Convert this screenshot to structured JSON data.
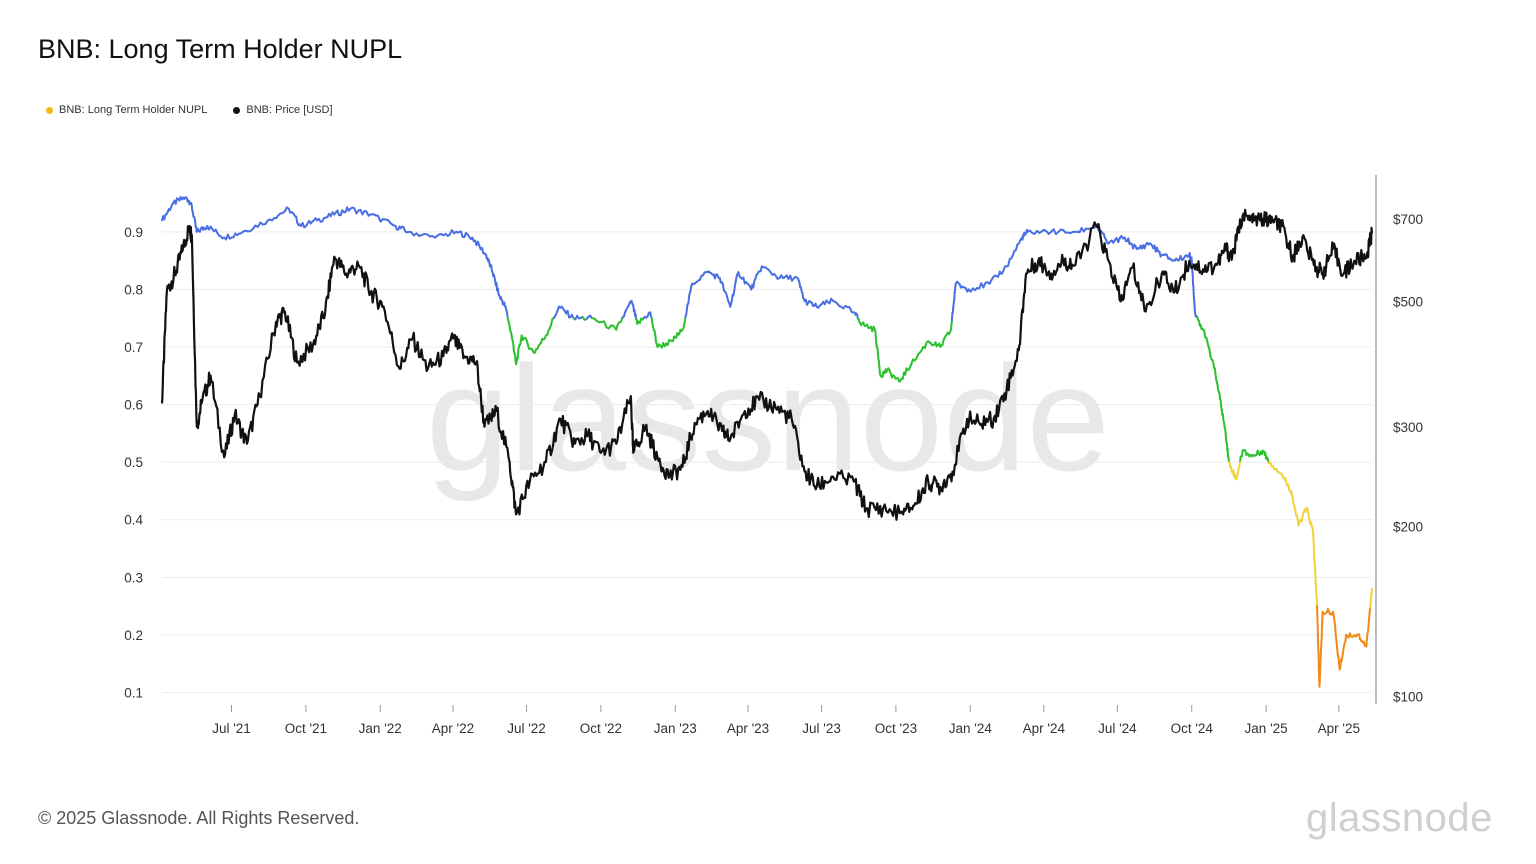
{
  "header": {
    "title": "BNB: Long Term Holder NUPL"
  },
  "legend": [
    {
      "label": "BNB: Long Term Holder NUPL",
      "color": "#f2b91f"
    },
    {
      "label": "BNB: Price [USD]",
      "color": "#111111"
    }
  ],
  "footer": {
    "copyright": "© 2025 Glassnode. All Rights Reserved.",
    "logo": "glassnode"
  },
  "watermark": "glassnode",
  "chart_data": {
    "type": "line",
    "title": "BNB: Long Term Holder NUPL",
    "x_tick_labels": [
      "Jul '21",
      "Oct '21",
      "Jan '22",
      "Apr '22",
      "Jul '22",
      "Oct '22",
      "Jan '23",
      "Apr '23",
      "Jul '23",
      "Oct '23",
      "Jan '24",
      "Apr '24",
      "Jul '24",
      "Oct '24",
      "Jan '25",
      "Apr '25"
    ],
    "x_range": [
      "2021-04-06",
      "2025-05-12"
    ],
    "y_left": {
      "ticks": [
        0.1,
        0.2,
        0.3,
        0.4,
        0.5,
        0.6,
        0.7,
        0.8,
        0.9
      ],
      "tick_labels": [
        "0.1",
        "0.2",
        "0.3",
        "0.4",
        "0.5",
        "0.6",
        "0.7",
        "0.8",
        "0.9"
      ],
      "range": [
        0.08,
        0.99
      ]
    },
    "y_right": {
      "scale": "log",
      "ticks": [
        100,
        200,
        300,
        500,
        700
      ],
      "tick_labels": [
        "$100",
        "$200",
        "$300",
        "$500",
        "$700"
      ],
      "range": [
        97,
        820
      ]
    },
    "zone_colors": {
      "above_0.75": "#4a6fe3",
      "0.5_to_0.75": "#2dc12d",
      "0.25_to_0.5": "#f0d43a",
      "0_to_0.25": "#f08a1a"
    },
    "grid": "horizontal",
    "series": [
      {
        "name": "BNB: Long Term Holder NUPL",
        "axis": "left",
        "points": [
          [
            "2021-04-06",
            0.92
          ],
          [
            "2021-04-20",
            0.95
          ],
          [
            "2021-05-05",
            0.96
          ],
          [
            "2021-05-12",
            0.95
          ],
          [
            "2021-05-19",
            0.9
          ],
          [
            "2021-06-01",
            0.91
          ],
          [
            "2021-06-22",
            0.89
          ],
          [
            "2021-07-15",
            0.9
          ],
          [
            "2021-08-15",
            0.92
          ],
          [
            "2021-09-10",
            0.94
          ],
          [
            "2021-09-25",
            0.91
          ],
          [
            "2021-10-15",
            0.92
          ],
          [
            "2021-11-05",
            0.93
          ],
          [
            "2021-11-25",
            0.94
          ],
          [
            "2021-12-20",
            0.93
          ],
          [
            "2022-01-20",
            0.91
          ],
          [
            "2022-02-05",
            0.9
          ],
          [
            "2022-03-10",
            0.89
          ],
          [
            "2022-04-05",
            0.9
          ],
          [
            "2022-04-25",
            0.89
          ],
          [
            "2022-05-12",
            0.86
          ],
          [
            "2022-05-20",
            0.83
          ],
          [
            "2022-05-28",
            0.79
          ],
          [
            "2022-06-05",
            0.77
          ],
          [
            "2022-06-14",
            0.71
          ],
          [
            "2022-06-18",
            0.67
          ],
          [
            "2022-06-25",
            0.72
          ],
          [
            "2022-07-10",
            0.69
          ],
          [
            "2022-07-25",
            0.72
          ],
          [
            "2022-08-10",
            0.77
          ],
          [
            "2022-08-28",
            0.75
          ],
          [
            "2022-09-20",
            0.75
          ],
          [
            "2022-10-20",
            0.73
          ],
          [
            "2022-11-08",
            0.78
          ],
          [
            "2022-11-15",
            0.74
          ],
          [
            "2022-12-01",
            0.76
          ],
          [
            "2022-12-10",
            0.7
          ],
          [
            "2022-12-28",
            0.71
          ],
          [
            "2023-01-10",
            0.73
          ],
          [
            "2023-01-22",
            0.81
          ],
          [
            "2023-02-10",
            0.83
          ],
          [
            "2023-02-25",
            0.82
          ],
          [
            "2023-03-10",
            0.77
          ],
          [
            "2023-03-20",
            0.83
          ],
          [
            "2023-04-05",
            0.8
          ],
          [
            "2023-04-18",
            0.84
          ],
          [
            "2023-05-10",
            0.82
          ],
          [
            "2023-06-01",
            0.82
          ],
          [
            "2023-06-10",
            0.78
          ],
          [
            "2023-06-25",
            0.77
          ],
          [
            "2023-07-15",
            0.78
          ],
          [
            "2023-08-10",
            0.76
          ],
          [
            "2023-08-20",
            0.74
          ],
          [
            "2023-09-05",
            0.73
          ],
          [
            "2023-09-12",
            0.65
          ],
          [
            "2023-09-20",
            0.66
          ],
          [
            "2023-10-05",
            0.64
          ],
          [
            "2023-10-20",
            0.67
          ],
          [
            "2023-11-10",
            0.71
          ],
          [
            "2023-11-25",
            0.7
          ],
          [
            "2023-12-08",
            0.73
          ],
          [
            "2023-12-14",
            0.81
          ],
          [
            "2023-12-30",
            0.8
          ],
          [
            "2024-01-25",
            0.81
          ],
          [
            "2024-02-15",
            0.84
          ],
          [
            "2024-03-05",
            0.89
          ],
          [
            "2024-03-12",
            0.9
          ],
          [
            "2024-04-10",
            0.9
          ],
          [
            "2024-05-10",
            0.9
          ],
          [
            "2024-06-05",
            0.91
          ],
          [
            "2024-06-20",
            0.88
          ],
          [
            "2024-07-10",
            0.89
          ],
          [
            "2024-07-25",
            0.87
          ],
          [
            "2024-08-10",
            0.88
          ],
          [
            "2024-08-25",
            0.86
          ],
          [
            "2024-09-10",
            0.85
          ],
          [
            "2024-09-28",
            0.86
          ],
          [
            "2024-10-01",
            0.85
          ],
          [
            "2024-10-05",
            0.76
          ],
          [
            "2024-10-15",
            0.73
          ],
          [
            "2024-10-28",
            0.67
          ],
          [
            "2024-11-05",
            0.61
          ],
          [
            "2024-11-12",
            0.55
          ],
          [
            "2024-11-16",
            0.5
          ],
          [
            "2024-11-25",
            0.47
          ],
          [
            "2024-12-03",
            0.52
          ],
          [
            "2024-12-15",
            0.51
          ],
          [
            "2024-12-28",
            0.52
          ],
          [
            "2025-01-05",
            0.5
          ],
          [
            "2025-01-20",
            0.48
          ],
          [
            "2025-02-01",
            0.45
          ],
          [
            "2025-02-10",
            0.39
          ],
          [
            "2025-02-20",
            0.42
          ],
          [
            "2025-02-28",
            0.38
          ],
          [
            "2025-03-03",
            0.3
          ],
          [
            "2025-03-05",
            0.25
          ],
          [
            "2025-03-08",
            0.11
          ],
          [
            "2025-03-12",
            0.24
          ],
          [
            "2025-03-25",
            0.24
          ],
          [
            "2025-04-02",
            0.14
          ],
          [
            "2025-04-10",
            0.2
          ],
          [
            "2025-04-25",
            0.2
          ],
          [
            "2025-05-05",
            0.18
          ],
          [
            "2025-05-12",
            0.28
          ]
        ]
      },
      {
        "name": "BNB: Price [USD]",
        "axis": "right",
        "points": [
          [
            "2021-04-06",
            330
          ],
          [
            "2021-04-12",
            520
          ],
          [
            "2021-04-22",
            560
          ],
          [
            "2021-05-02",
            620
          ],
          [
            "2021-05-10",
            680
          ],
          [
            "2021-05-13",
            650
          ],
          [
            "2021-05-19",
            300
          ],
          [
            "2021-05-25",
            330
          ],
          [
            "2021-06-05",
            370
          ],
          [
            "2021-06-22",
            265
          ],
          [
            "2021-07-05",
            315
          ],
          [
            "2021-07-20",
            280
          ],
          [
            "2021-08-05",
            340
          ],
          [
            "2021-08-25",
            460
          ],
          [
            "2021-09-05",
            480
          ],
          [
            "2021-09-20",
            390
          ],
          [
            "2021-10-10",
            420
          ],
          [
            "2021-10-25",
            480
          ],
          [
            "2021-11-05",
            600
          ],
          [
            "2021-11-20",
            560
          ],
          [
            "2021-12-05",
            580
          ],
          [
            "2021-12-20",
            520
          ],
          [
            "2022-01-05",
            490
          ],
          [
            "2022-01-25",
            380
          ],
          [
            "2022-02-10",
            430
          ],
          [
            "2022-03-01",
            380
          ],
          [
            "2022-03-20",
            400
          ],
          [
            "2022-04-01",
            430
          ],
          [
            "2022-04-15",
            400
          ],
          [
            "2022-04-30",
            390
          ],
          [
            "2022-05-10",
            300
          ],
          [
            "2022-05-25",
            320
          ],
          [
            "2022-06-10",
            260
          ],
          [
            "2022-06-18",
            210
          ],
          [
            "2022-07-05",
            240
          ],
          [
            "2022-07-25",
            260
          ],
          [
            "2022-08-12",
            310
          ],
          [
            "2022-08-30",
            280
          ],
          [
            "2022-09-15",
            290
          ],
          [
            "2022-10-01",
            270
          ],
          [
            "2022-10-20",
            280
          ],
          [
            "2022-11-07",
            340
          ],
          [
            "2022-11-10",
            270
          ],
          [
            "2022-11-25",
            300
          ],
          [
            "2022-12-10",
            265
          ],
          [
            "2022-12-25",
            245
          ],
          [
            "2023-01-10",
            255
          ],
          [
            "2023-01-25",
            305
          ],
          [
            "2023-02-10",
            320
          ],
          [
            "2023-02-28",
            295
          ],
          [
            "2023-03-10",
            285
          ],
          [
            "2023-03-28",
            320
          ],
          [
            "2023-04-15",
            335
          ],
          [
            "2023-05-05",
            325
          ],
          [
            "2023-05-25",
            310
          ],
          [
            "2023-06-10",
            250
          ],
          [
            "2023-06-25",
            235
          ],
          [
            "2023-07-15",
            245
          ],
          [
            "2023-08-10",
            240
          ],
          [
            "2023-08-25",
            215
          ],
          [
            "2023-09-15",
            215
          ],
          [
            "2023-10-10",
            210
          ],
          [
            "2023-10-25",
            220
          ],
          [
            "2023-11-10",
            240
          ],
          [
            "2023-11-25",
            235
          ],
          [
            "2023-12-10",
            250
          ],
          [
            "2023-12-28",
            310
          ],
          [
            "2024-01-12",
            305
          ],
          [
            "2024-01-30",
            310
          ],
          [
            "2024-02-15",
            350
          ],
          [
            "2024-03-01",
            410
          ],
          [
            "2024-03-10",
            560
          ],
          [
            "2024-03-25",
            590
          ],
          [
            "2024-04-10",
            560
          ],
          [
            "2024-04-25",
            590
          ],
          [
            "2024-05-10",
            580
          ],
          [
            "2024-06-05",
            680
          ],
          [
            "2024-06-20",
            590
          ],
          [
            "2024-07-05",
            500
          ],
          [
            "2024-07-20",
            575
          ],
          [
            "2024-08-05",
            480
          ],
          [
            "2024-08-25",
            560
          ],
          [
            "2024-09-10",
            520
          ],
          [
            "2024-09-28",
            590
          ],
          [
            "2024-10-15",
            570
          ],
          [
            "2024-11-01",
            580
          ],
          [
            "2024-11-12",
            620
          ],
          [
            "2024-11-20",
            600
          ],
          [
            "2024-12-03",
            710
          ],
          [
            "2024-12-15",
            690
          ],
          [
            "2024-12-28",
            700
          ],
          [
            "2025-01-10",
            690
          ],
          [
            "2025-01-20",
            680
          ],
          [
            "2025-02-03",
            600
          ],
          [
            "2025-02-15",
            650
          ],
          [
            "2025-03-01",
            580
          ],
          [
            "2025-03-12",
            560
          ],
          [
            "2025-03-25",
            620
          ],
          [
            "2025-04-07",
            560
          ],
          [
            "2025-04-20",
            590
          ],
          [
            "2025-05-05",
            600
          ],
          [
            "2025-05-12",
            660
          ]
        ]
      }
    ]
  }
}
